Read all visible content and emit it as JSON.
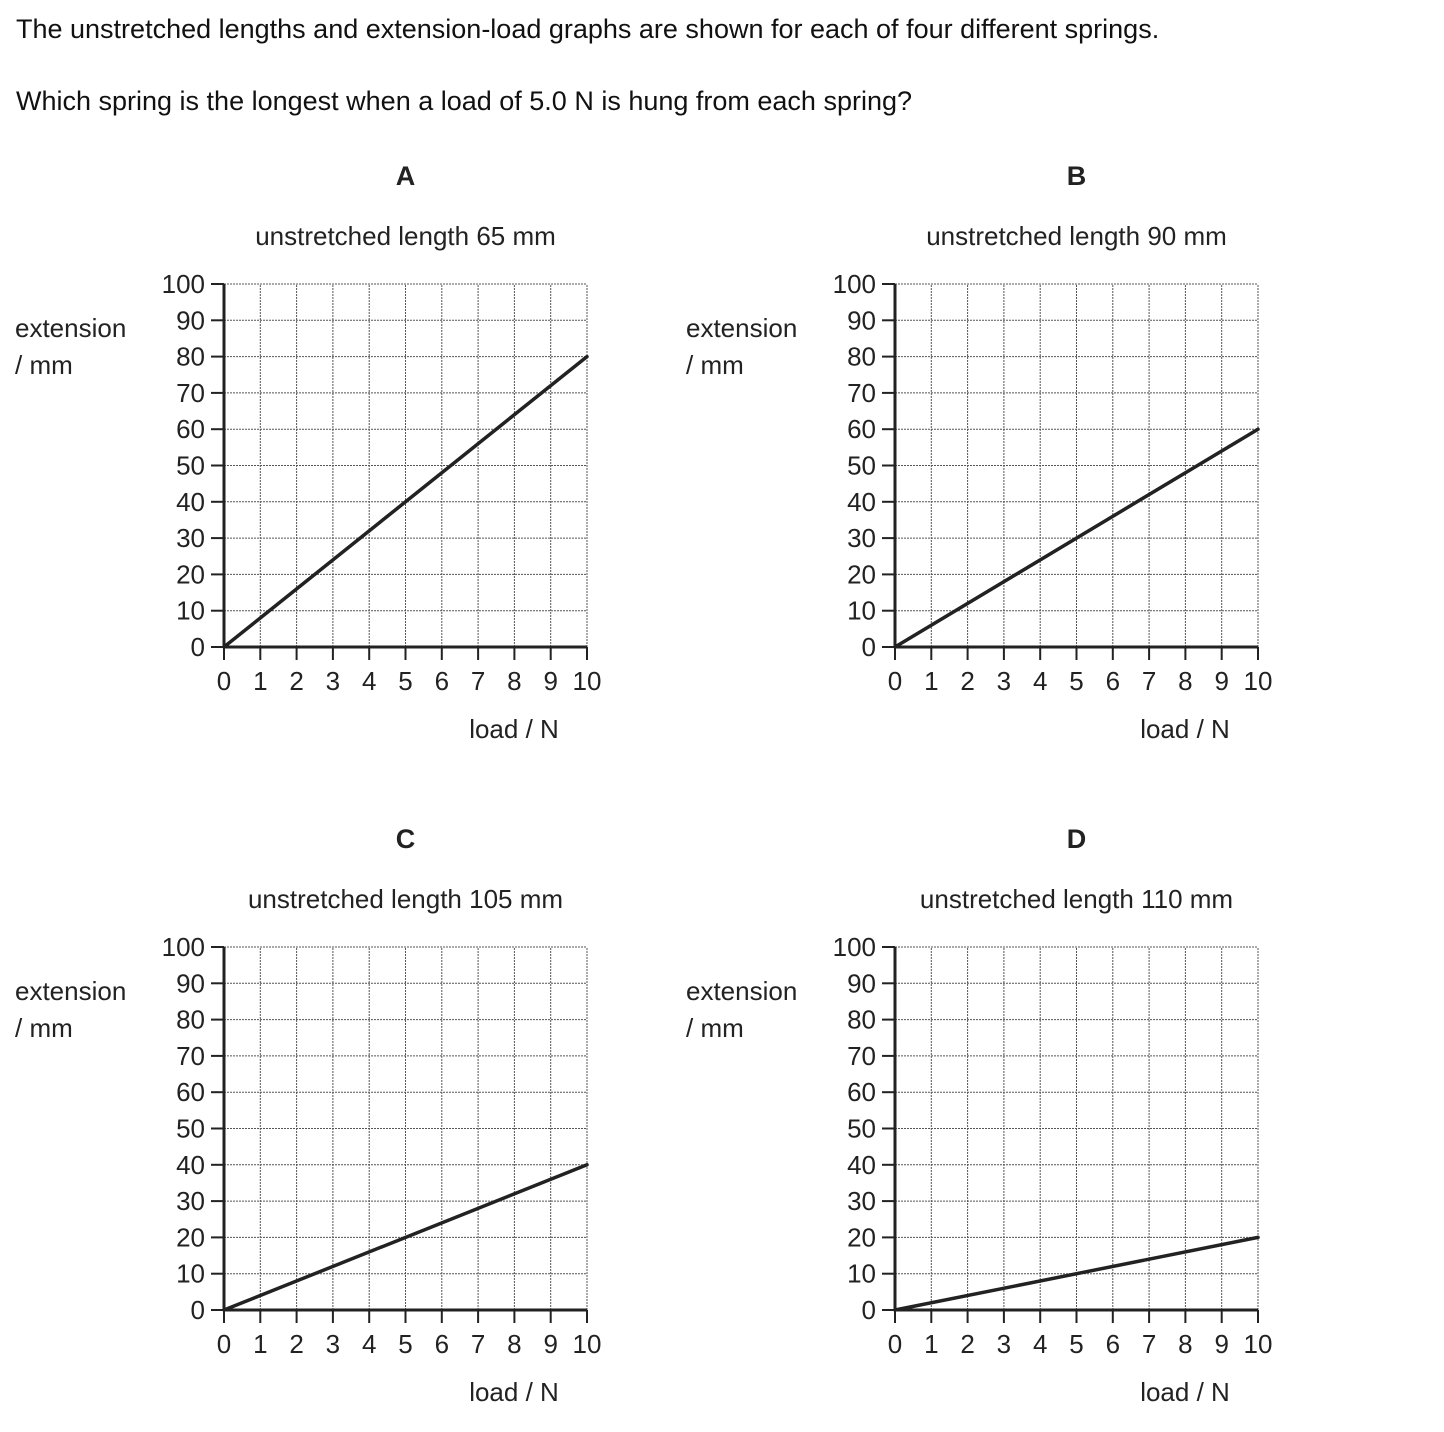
{
  "question": {
    "line1": "The unstretched lengths and extension-load graphs are shown for each of four different springs.",
    "line2": "Which spring is the longest when a load of 5.0 N is hung from each spring?"
  },
  "chart_data": [
    {
      "type": "line",
      "title": "A",
      "subtitle": "unstretched length 65 mm",
      "xlabel": "load / N",
      "ylabel": [
        "extension",
        "/ mm"
      ],
      "xlim": [
        0,
        10
      ],
      "ylim": [
        0,
        100
      ],
      "xticks": [
        0,
        1,
        2,
        3,
        4,
        5,
        6,
        7,
        8,
        9,
        10
      ],
      "yticks": [
        0,
        10,
        20,
        30,
        40,
        50,
        60,
        70,
        80,
        90,
        100
      ],
      "grid": true,
      "series": [
        {
          "x": [
            0,
            10
          ],
          "y": [
            0,
            80
          ]
        }
      ]
    },
    {
      "type": "line",
      "title": "B",
      "subtitle": "unstretched length 90 mm",
      "xlabel": "load / N",
      "ylabel": [
        "extension",
        "/ mm"
      ],
      "xlim": [
        0,
        10
      ],
      "ylim": [
        0,
        100
      ],
      "xticks": [
        0,
        1,
        2,
        3,
        4,
        5,
        6,
        7,
        8,
        9,
        10
      ],
      "yticks": [
        0,
        10,
        20,
        30,
        40,
        50,
        60,
        70,
        80,
        90,
        100
      ],
      "grid": true,
      "series": [
        {
          "x": [
            0,
            10
          ],
          "y": [
            0,
            60
          ]
        }
      ]
    },
    {
      "type": "line",
      "title": "C",
      "subtitle": "unstretched length 105 mm",
      "xlabel": "load / N",
      "ylabel": [
        "extension",
        "/ mm"
      ],
      "xlim": [
        0,
        10
      ],
      "ylim": [
        0,
        100
      ],
      "xticks": [
        0,
        1,
        2,
        3,
        4,
        5,
        6,
        7,
        8,
        9,
        10
      ],
      "yticks": [
        0,
        10,
        20,
        30,
        40,
        50,
        60,
        70,
        80,
        90,
        100
      ],
      "grid": true,
      "series": [
        {
          "x": [
            0,
            10
          ],
          "y": [
            0,
            40
          ]
        }
      ]
    },
    {
      "type": "line",
      "title": "D",
      "subtitle": "unstretched length 110 mm",
      "xlabel": "load / N",
      "ylabel": [
        "extension",
        "/ mm"
      ],
      "xlim": [
        0,
        10
      ],
      "ylim": [
        0,
        100
      ],
      "xticks": [
        0,
        1,
        2,
        3,
        4,
        5,
        6,
        7,
        8,
        9,
        10
      ],
      "yticks": [
        0,
        10,
        20,
        30,
        40,
        50,
        60,
        70,
        80,
        90,
        100
      ],
      "grid": true,
      "series": [
        {
          "x": [
            0,
            10
          ],
          "y": [
            0,
            20
          ]
        }
      ]
    }
  ]
}
